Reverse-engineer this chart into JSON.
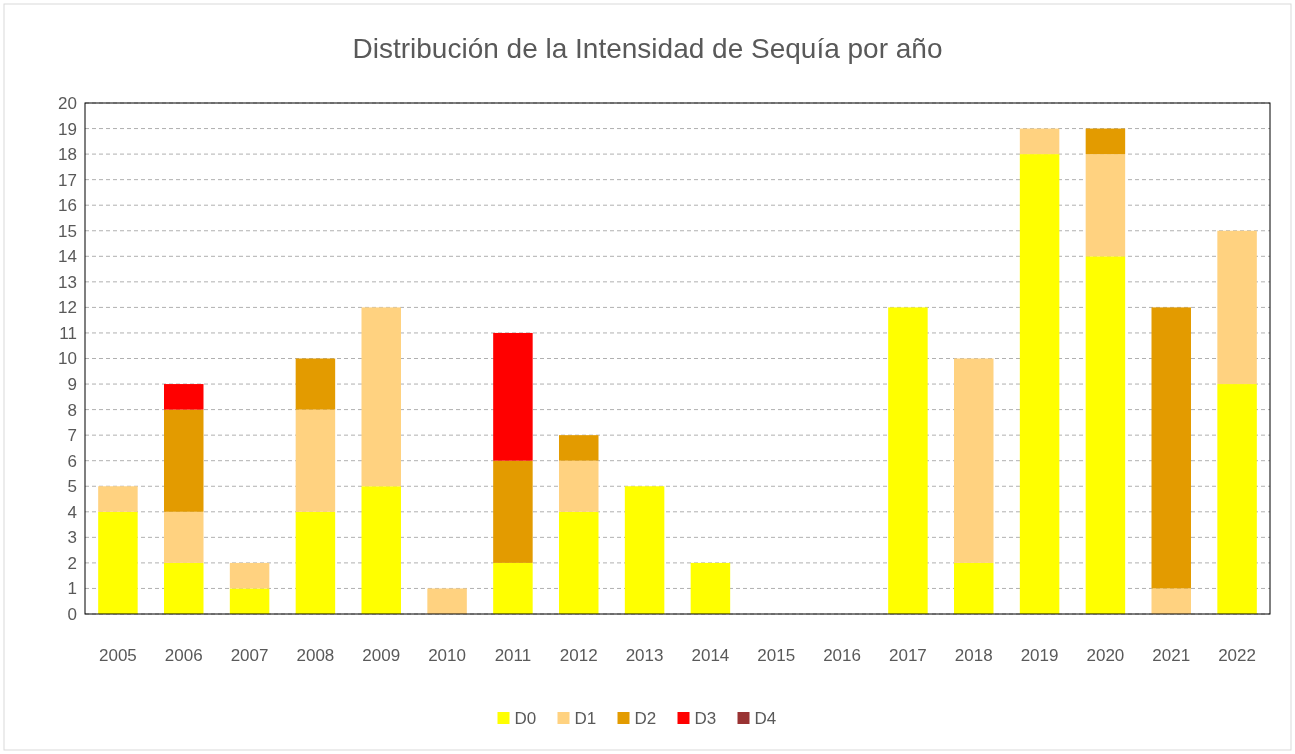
{
  "chart_data": {
    "type": "bar",
    "title": "Distribución de la Intensidad de Sequía por año",
    "stacked": true,
    "categories": [
      "2005",
      "2006",
      "2007",
      "2008",
      "2009",
      "2010",
      "2011",
      "2012",
      "2013",
      "2014",
      "2015",
      "2016",
      "2017",
      "2018",
      "2019",
      "2020",
      "2021",
      "2022"
    ],
    "series": [
      {
        "name": "D0",
        "color": "#ffff00",
        "values": [
          4,
          2,
          1,
          4,
          5,
          0,
          2,
          4,
          5,
          2,
          0,
          0,
          12,
          2,
          18,
          14,
          0,
          9
        ]
      },
      {
        "name": "D1",
        "color": "#ffd280",
        "values": [
          1,
          2,
          1,
          4,
          7,
          1,
          0,
          2,
          0,
          0,
          0,
          0,
          0,
          8,
          1,
          4,
          1,
          6
        ]
      },
      {
        "name": "D2",
        "color": "#e39b00",
        "values": [
          0,
          4,
          0,
          2,
          0,
          0,
          4,
          1,
          0,
          0,
          0,
          0,
          0,
          0,
          0,
          1,
          11,
          0
        ]
      },
      {
        "name": "D3",
        "color": "#ff0000",
        "values": [
          0,
          1,
          0,
          0,
          0,
          0,
          5,
          0,
          0,
          0,
          0,
          0,
          0,
          0,
          0,
          0,
          0,
          0
        ]
      },
      {
        "name": "D4",
        "color": "#993333",
        "values": [
          0,
          0,
          0,
          0,
          0,
          0,
          0,
          0,
          0,
          0,
          0,
          0,
          0,
          0,
          0,
          0,
          0,
          0
        ]
      }
    ],
    "ylim": [
      0,
      20
    ],
    "yticks": [
      0,
      1,
      2,
      3,
      4,
      5,
      6,
      7,
      8,
      9,
      10,
      11,
      12,
      13,
      14,
      15,
      16,
      17,
      18,
      19,
      20
    ],
    "grid": "y",
    "legend": "bottom"
  }
}
